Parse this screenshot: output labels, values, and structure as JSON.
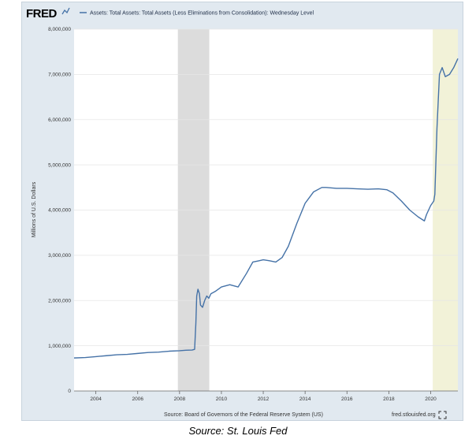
{
  "header": {
    "logo_text": "FRED",
    "series_title": "Assets: Total Assets: Total Assets (Less Eliminations from Consolidation): Wednesday Level"
  },
  "footer": {
    "source": "Source: Board of Governors of the Federal Reserve System (US)",
    "site": "fred.stlouisfed.org"
  },
  "caption": "Source: St. Louis Fed",
  "colors": {
    "line": "#4572a7",
    "recession_2008": "#dcdcdc",
    "recession_2020": "#f2f2d8",
    "plot_bg": "#ffffff",
    "frame_bg": "#e1e9f0"
  },
  "icons": {
    "logo_mark": "fred-sparkline-icon",
    "fullscreen": "expand-icon"
  },
  "chart_data": {
    "type": "line",
    "title": "Assets: Total Assets: Total Assets (Less Eliminations from Consolidation): Wednesday Level",
    "xlabel": "",
    "ylabel": "Millions of U.S. Dollars",
    "xlim": [
      2002.96,
      2021.3
    ],
    "ylim": [
      0,
      8000000
    ],
    "y_ticks": [
      0,
      1000000,
      2000000,
      3000000,
      4000000,
      5000000,
      6000000,
      7000000,
      8000000
    ],
    "y_tick_labels": [
      "0",
      "1,000,000",
      "2,000,000",
      "3,000,000",
      "4,000,000",
      "5,000,000",
      "6,000,000",
      "7,000,000",
      "8,000,000"
    ],
    "x_ticks": [
      2004,
      2006,
      2008,
      2010,
      2012,
      2014,
      2016,
      2018,
      2020
    ],
    "x_tick_labels": [
      "2004",
      "2006",
      "2008",
      "2010",
      "2012",
      "2014",
      "2016",
      "2018",
      "2020"
    ],
    "grid": true,
    "recessions": [
      {
        "start": 2007.92,
        "end": 2009.42
      },
      {
        "start": 2020.1,
        "end": 2021.3
      }
    ],
    "series": [
      {
        "x": [
          2002.96,
          2003.5,
          2004.0,
          2004.5,
          2005.0,
          2005.5,
          2006.0,
          2006.5,
          2007.0,
          2007.5,
          2008.0,
          2008.3,
          2008.6,
          2008.72,
          2008.78,
          2008.82,
          2008.88,
          2008.95,
          2009.0,
          2009.1,
          2009.2,
          2009.3,
          2009.4,
          2009.5,
          2009.7,
          2010.0,
          2010.4,
          2010.8,
          2011.2,
          2011.5,
          2011.8,
          2012.0,
          2012.3,
          2012.6,
          2012.9,
          2013.2,
          2013.6,
          2014.0,
          2014.4,
          2014.8,
          2015.0,
          2015.5,
          2016.0,
          2016.5,
          2017.0,
          2017.5,
          2017.9,
          2018.2,
          2018.6,
          2019.0,
          2019.4,
          2019.7,
          2019.8,
          2020.0,
          2020.15,
          2020.2,
          2020.3,
          2020.42,
          2020.55,
          2020.7,
          2020.9,
          2021.1,
          2021.3
        ],
        "values": [
          730000,
          740000,
          760000,
          780000,
          800000,
          810000,
          830000,
          850000,
          860000,
          880000,
          890000,
          900000,
          905000,
          920000,
          1500000,
          2100000,
          2250000,
          2150000,
          1900000,
          1850000,
          2000000,
          2100000,
          2050000,
          2150000,
          2200000,
          2300000,
          2350000,
          2300000,
          2600000,
          2850000,
          2880000,
          2900000,
          2880000,
          2850000,
          2950000,
          3200000,
          3700000,
          4150000,
          4400000,
          4500000,
          4500000,
          4480000,
          4480000,
          4470000,
          4460000,
          4470000,
          4450000,
          4380000,
          4200000,
          4000000,
          3850000,
          3760000,
          3900000,
          4100000,
          4200000,
          4350000,
          5800000,
          7000000,
          7150000,
          6950000,
          7000000,
          7150000,
          7350000
        ]
      }
    ]
  }
}
